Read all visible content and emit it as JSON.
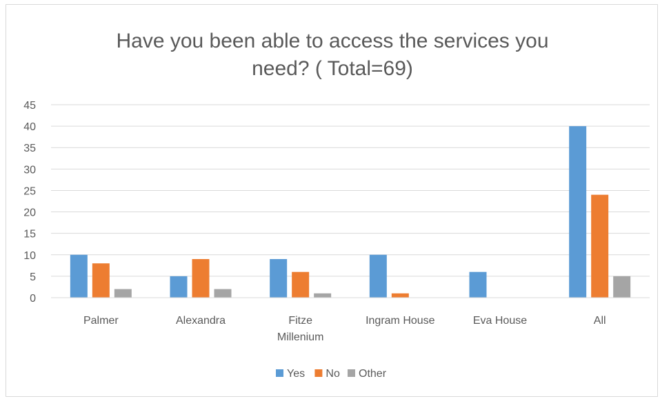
{
  "chart_data": {
    "type": "bar",
    "title": "Have you been able to access the services you need? ( Total=69)",
    "title_lines": [
      "Have you been able to access the services you",
      "need? ( Total=69)"
    ],
    "categories": [
      {
        "label": "Palmer",
        "lines": [
          "Palmer"
        ]
      },
      {
        "label": "Alexandra",
        "lines": [
          "Alexandra"
        ]
      },
      {
        "label": "Fitze Millenium",
        "lines": [
          "Fitze",
          "Millenium"
        ]
      },
      {
        "label": "Ingram House",
        "lines": [
          "Ingram House"
        ]
      },
      {
        "label": "Eva House",
        "lines": [
          "Eva House"
        ]
      },
      {
        "label": "All",
        "lines": [
          "All"
        ]
      }
    ],
    "series": [
      {
        "name": "Yes",
        "color": "#5b9bd5",
        "values": [
          10,
          5,
          9,
          10,
          6,
          40
        ]
      },
      {
        "name": "No",
        "color": "#ed7d31",
        "values": [
          8,
          9,
          6,
          1,
          0,
          24
        ]
      },
      {
        "name": "Other",
        "color": "#a5a5a5",
        "values": [
          2,
          2,
          1,
          0,
          0,
          5
        ]
      }
    ],
    "ylim": [
      0,
      45
    ],
    "yticks": [
      0,
      5,
      10,
      15,
      20,
      25,
      30,
      35,
      40,
      45
    ],
    "xlabel": "",
    "ylabel": "",
    "grid": true,
    "legend_position": "bottom"
  }
}
